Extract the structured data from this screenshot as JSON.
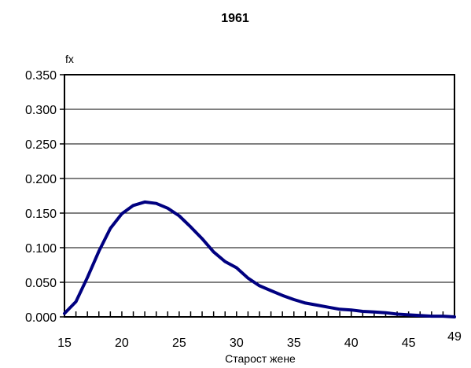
{
  "chart_data": {
    "type": "line",
    "title": "1961",
    "xlabel": "Старост жене",
    "ylabel": "fx",
    "xlim": [
      15,
      49
    ],
    "ylim": [
      0,
      0.35
    ],
    "x_ticks": [
      15,
      20,
      25,
      30,
      35,
      40,
      45,
      49
    ],
    "x_tick_labels": [
      "15",
      "20",
      "25",
      "30",
      "35",
      "40",
      "45",
      "49"
    ],
    "y_ticks": [
      0,
      0.05,
      0.1,
      0.15,
      0.2,
      0.25,
      0.3,
      0.35
    ],
    "y_tick_labels": [
      "0.000",
      "0.050",
      "0.100",
      "0.150",
      "0.200",
      "0.250",
      "0.300",
      "0.350"
    ],
    "grid": "horizontal",
    "legend": "none",
    "line_color": "#000080",
    "x": [
      15,
      16,
      17,
      18,
      19,
      20,
      21,
      22,
      23,
      24,
      25,
      26,
      27,
      28,
      29,
      30,
      31,
      32,
      33,
      34,
      35,
      36,
      37,
      38,
      39,
      40,
      41,
      42,
      43,
      44,
      45,
      46,
      47,
      48,
      49
    ],
    "values": [
      0.005,
      0.022,
      0.057,
      0.095,
      0.128,
      0.149,
      0.161,
      0.166,
      0.164,
      0.157,
      0.146,
      0.13,
      0.113,
      0.094,
      0.08,
      0.071,
      0.056,
      0.045,
      0.038,
      0.031,
      0.025,
      0.02,
      0.017,
      0.014,
      0.011,
      0.01,
      0.008,
      0.007,
      0.006,
      0.004,
      0.003,
      0.002,
      0.001,
      0.001,
      0.0
    ]
  }
}
